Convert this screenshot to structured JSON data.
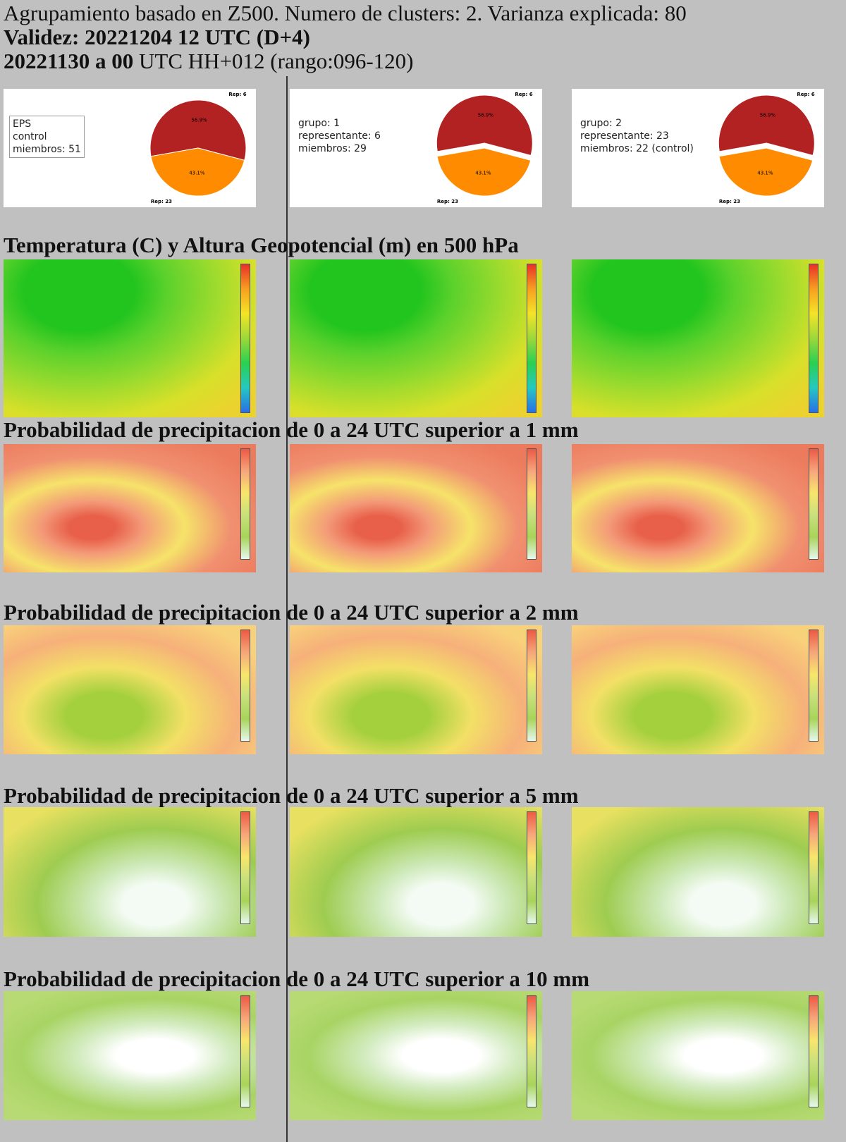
{
  "header": {
    "line1": "Agrupamiento basado en Z500. Numero de clusters: 2. Varianza explicada: 80",
    "line2": "Validez: 20221204 12 UTC (D+4)",
    "line3_bold": "20221130 a 00",
    "line3_rest": "UTC HH+012 (rango:096-120)"
  },
  "panels": [
    {
      "lines": [
        "EPS",
        "control",
        "miembros: 51"
      ],
      "exploded": false,
      "slices": [
        {
          "label": "Rep: 6",
          "value": 56.9,
          "value_label": "56.9%",
          "color": "#b22222"
        },
        {
          "label": "Rep: 23",
          "value": 43.1,
          "value_label": "43.1%",
          "color": "#ff8c00"
        }
      ]
    },
    {
      "lines": [
        "grupo: 1",
        "representante: 6",
        "miembros: 29"
      ],
      "exploded": true,
      "slices": [
        {
          "label": "Rep: 6",
          "value": 56.9,
          "value_label": "56.9%",
          "color": "#b22222"
        },
        {
          "label": "Rep: 23",
          "value": 43.1,
          "value_label": "43.1%",
          "color": "#ff8c00"
        }
      ]
    },
    {
      "lines": [
        "grupo: 2",
        "representante: 23",
        "miembros: 22 (control)"
      ],
      "exploded": true,
      "slices": [
        {
          "label": "Rep: 6",
          "value": 56.9,
          "value_label": "56.9%",
          "color": "#b22222"
        },
        {
          "label": "Rep: 23",
          "value": 43.1,
          "value_label": "43.1%",
          "color": "#ff8c00"
        }
      ]
    }
  ],
  "sections": [
    {
      "title": "Temperatura (C) y Altura Geopotencial (m) en 500 hPa"
    },
    {
      "title": "Probabilidad de precipitacion de 0 a 24 UTC superior a 1 mm"
    },
    {
      "title": "Probabilidad de precipitacion de 0 a 24 UTC superior a 2 mm"
    },
    {
      "title": "Probabilidad de precipitacion de 0 a 24 UTC superior a 5 mm"
    },
    {
      "title": "Probabilidad de precipitacion de 0 a 24 UTC superior a 10 mm"
    }
  ]
}
